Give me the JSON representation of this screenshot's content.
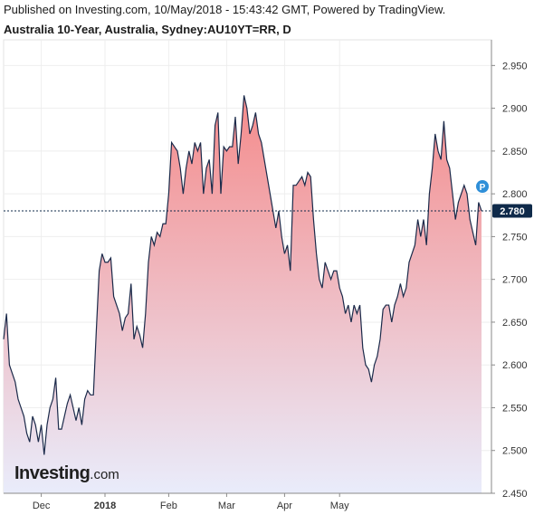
{
  "header": {
    "published": "Published on Investing.com, 10/May/2018 - 15:43:42 GMT, Powered by TradingView.",
    "instrument": "Australia 10-Year, Australia, Sydney:AU10YT=RR, D"
  },
  "logo": {
    "brand": "Investing",
    "tld": ".com"
  },
  "marker": {
    "label": "P",
    "color": "#2f8fd8"
  },
  "colors": {
    "line": "#1b2a4a",
    "fill_top": "#f58b8b",
    "fill_bottom": "#e9ecfb",
    "last_label_bg": "#0f2a4a"
  },
  "chart_data": {
    "type": "area",
    "ylim": [
      2.45,
      2.98
    ],
    "y_ticks": [
      "2.450",
      "2.500",
      "2.550",
      "2.600",
      "2.650",
      "2.700",
      "2.750",
      "2.800",
      "2.850",
      "2.900",
      "2.950"
    ],
    "x_ticks": [
      {
        "label": "Dec",
        "index": 13,
        "bold": false
      },
      {
        "label": "2018",
        "index": 35,
        "bold": true
      },
      {
        "label": "Feb",
        "index": 57,
        "bold": false
      },
      {
        "label": "Mar",
        "index": 77,
        "bold": false
      },
      {
        "label": "Apr",
        "index": 97,
        "bold": false
      },
      {
        "label": "May",
        "index": 116,
        "bold": false
      }
    ],
    "last_value": "2.780",
    "last_value_num": 2.78,
    "grid": true,
    "values": [
      2.63,
      2.66,
      2.6,
      2.59,
      2.58,
      2.56,
      2.55,
      2.54,
      2.52,
      2.51,
      2.54,
      2.53,
      2.51,
      2.53,
      2.495,
      2.53,
      2.55,
      2.56,
      2.585,
      2.525,
      2.525,
      2.54,
      2.555,
      2.565,
      2.55,
      2.535,
      2.55,
      2.53,
      2.56,
      2.57,
      2.565,
      2.565,
      2.64,
      2.71,
      2.73,
      2.72,
      2.72,
      2.725,
      2.68,
      2.67,
      2.66,
      2.64,
      2.655,
      2.66,
      2.695,
      2.63,
      2.645,
      2.635,
      2.62,
      2.66,
      2.72,
      2.75,
      2.74,
      2.755,
      2.75,
      2.765,
      2.765,
      2.8,
      2.86,
      2.855,
      2.85,
      2.83,
      2.8,
      2.83,
      2.85,
      2.835,
      2.86,
      2.85,
      2.86,
      2.8,
      2.83,
      2.84,
      2.8,
      2.88,
      2.895,
      2.8,
      2.855,
      2.85,
      2.855,
      2.855,
      2.89,
      2.835,
      2.87,
      2.915,
      2.9,
      2.87,
      2.88,
      2.895,
      2.87,
      2.86,
      2.84,
      2.82,
      2.8,
      2.78,
      2.76,
      2.78,
      2.75,
      2.73,
      2.74,
      2.71,
      2.81,
      2.81,
      2.815,
      2.82,
      2.81,
      2.825,
      2.82,
      2.77,
      2.73,
      2.7,
      2.69,
      2.72,
      2.71,
      2.7,
      2.71,
      2.71,
      2.69,
      2.68,
      2.66,
      2.67,
      2.65,
      2.67,
      2.66,
      2.67,
      2.62,
      2.6,
      2.595,
      2.58,
      2.6,
      2.61,
      2.63,
      2.665,
      2.67,
      2.67,
      2.65,
      2.67,
      2.68,
      2.695,
      2.68,
      2.69,
      2.72,
      2.73,
      2.74,
      2.77,
      2.75,
      2.77,
      2.74,
      2.8,
      2.83,
      2.87,
      2.85,
      2.84,
      2.885,
      2.84,
      2.83,
      2.8,
      2.77,
      2.79,
      2.8,
      2.81,
      2.8,
      2.77,
      2.755,
      2.74,
      2.79,
      2.78
    ]
  }
}
